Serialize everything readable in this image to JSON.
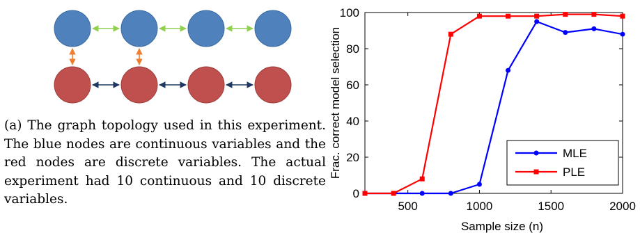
{
  "panel_a": {
    "caption": "(a) The graph topology used in this experiment. The blue nodes are continuous variables and the red nodes are discrete variables. The actual experiment had 10 continuous and 10 discrete variables.",
    "colors": {
      "continuous_node": "#4f81bd",
      "discrete_node": "#c0504d",
      "continuous_edge": "#92d050",
      "cross_edge": "#ed7d31",
      "discrete_edge": "#1f3864"
    }
  },
  "chart_data": {
    "type": "line",
    "title": "",
    "xlabel": "Sample size (n)",
    "ylabel": "Frac. correct model selection",
    "xlim": [
      200,
      2000
    ],
    "ylim": [
      0,
      100
    ],
    "xticks": [
      500,
      1000,
      1500,
      2000
    ],
    "yticks": [
      0,
      20,
      40,
      60,
      80,
      100
    ],
    "grid": false,
    "legend_position": "bottom-right",
    "series": [
      {
        "name": "MLE",
        "color": "#0000ff",
        "marker": "circle",
        "x": [
          200,
          400,
          600,
          800,
          1000,
          1200,
          1400,
          1600,
          1800,
          2000
        ],
        "y": [
          0,
          0,
          0,
          0,
          5,
          68,
          95,
          89,
          91,
          88
        ]
      },
      {
        "name": "PLE",
        "color": "#ff0000",
        "marker": "square",
        "x": [
          200,
          400,
          600,
          800,
          1000,
          1200,
          1400,
          1600,
          1800,
          2000
        ],
        "y": [
          0,
          0,
          8,
          88,
          98,
          98,
          98,
          99,
          99,
          98
        ]
      }
    ]
  }
}
